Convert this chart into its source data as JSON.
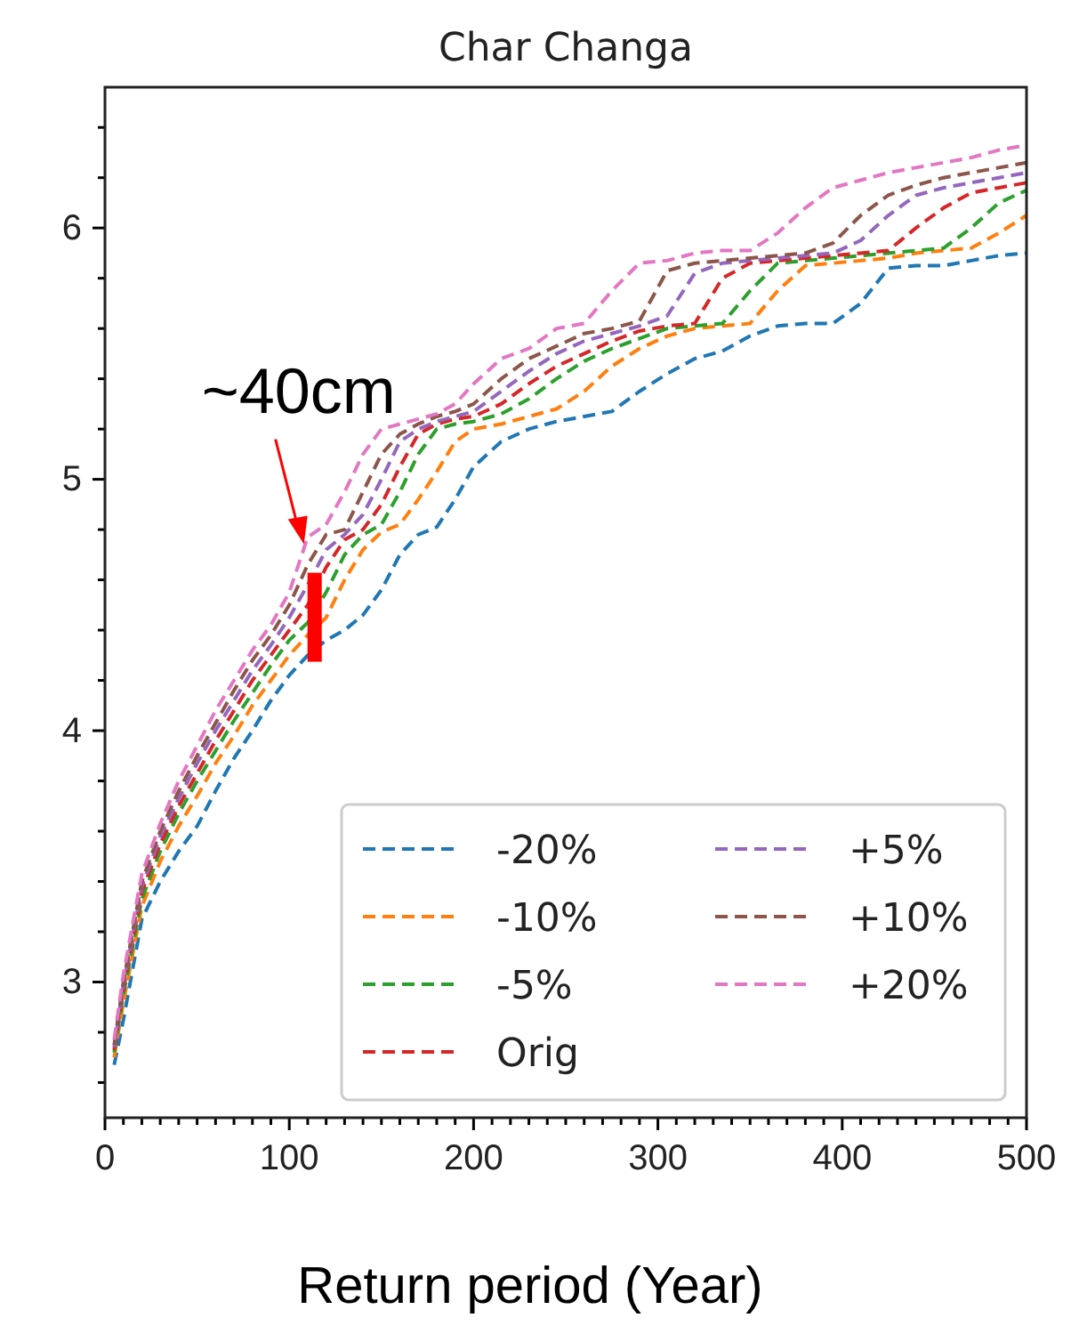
{
  "chart_data": {
    "type": "line",
    "title": "Char Changa",
    "xlabel": "Return period (Year)",
    "annotations": [
      {
        "text": "~40cm",
        "x": 107,
        "y": 4.6
      }
    ],
    "x": [
      5,
      10,
      20,
      30,
      40,
      50,
      60,
      70,
      80,
      90,
      100,
      110,
      120,
      130,
      140,
      150,
      160,
      170,
      180,
      190,
      200,
      215,
      230,
      245,
      260,
      275,
      290,
      305,
      320,
      335,
      350,
      365,
      380,
      395,
      410,
      425,
      440,
      455,
      470,
      485,
      500
    ],
    "series": [
      {
        "name": "-20%",
        "color": "#1f77b4",
        "values": [
          2.67,
          2.85,
          3.25,
          3.4,
          3.52,
          3.62,
          3.76,
          3.89,
          4.0,
          4.12,
          4.22,
          4.3,
          4.36,
          4.4,
          4.46,
          4.56,
          4.7,
          4.78,
          4.81,
          4.92,
          5.05,
          5.15,
          5.2,
          5.23,
          5.25,
          5.27,
          5.35,
          5.42,
          5.48,
          5.51,
          5.57,
          5.61,
          5.62,
          5.62,
          5.7,
          5.84,
          5.85,
          5.85,
          5.87,
          5.89,
          5.9
        ]
      },
      {
        "name": "-10%",
        "color": "#ff7f0e",
        "values": [
          2.7,
          2.92,
          3.3,
          3.48,
          3.62,
          3.74,
          3.87,
          3.98,
          4.1,
          4.2,
          4.3,
          4.38,
          4.45,
          4.6,
          4.72,
          4.79,
          4.82,
          4.92,
          5.03,
          5.15,
          5.2,
          5.22,
          5.25,
          5.28,
          5.35,
          5.45,
          5.52,
          5.57,
          5.6,
          5.61,
          5.62,
          5.75,
          5.85,
          5.86,
          5.87,
          5.88,
          5.9,
          5.91,
          5.92,
          5.98,
          6.05
        ]
      },
      {
        "name": "-5%",
        "color": "#2ca02c",
        "values": [
          2.72,
          2.95,
          3.33,
          3.52,
          3.67,
          3.8,
          3.92,
          4.04,
          4.15,
          4.26,
          4.36,
          4.43,
          4.55,
          4.7,
          4.78,
          4.82,
          4.95,
          5.1,
          5.2,
          5.22,
          5.23,
          5.26,
          5.32,
          5.4,
          5.47,
          5.52,
          5.56,
          5.6,
          5.61,
          5.62,
          5.75,
          5.86,
          5.87,
          5.88,
          5.89,
          5.9,
          5.91,
          5.92,
          6.0,
          6.1,
          6.15
        ]
      },
      {
        "name": "Orig",
        "color": "#d62728",
        "values": [
          2.73,
          2.97,
          3.36,
          3.55,
          3.7,
          3.83,
          3.96,
          4.08,
          4.2,
          4.3,
          4.4,
          4.5,
          4.65,
          4.76,
          4.8,
          4.9,
          5.05,
          5.18,
          5.22,
          5.24,
          5.25,
          5.3,
          5.38,
          5.45,
          5.5,
          5.55,
          5.59,
          5.61,
          5.62,
          5.8,
          5.86,
          5.87,
          5.88,
          5.89,
          5.9,
          5.91,
          6.0,
          6.08,
          6.14,
          6.16,
          6.18
        ]
      },
      {
        "name": "+5%",
        "color": "#9467bd",
        "values": [
          2.74,
          2.99,
          3.38,
          3.58,
          3.73,
          3.87,
          4.0,
          4.12,
          4.24,
          4.34,
          4.45,
          4.58,
          4.72,
          4.78,
          4.86,
          5.0,
          5.15,
          5.2,
          5.23,
          5.25,
          5.27,
          5.35,
          5.43,
          5.5,
          5.55,
          5.58,
          5.61,
          5.65,
          5.82,
          5.86,
          5.87,
          5.88,
          5.89,
          5.9,
          5.95,
          6.05,
          6.13,
          6.16,
          6.18,
          6.2,
          6.22
        ]
      },
      {
        "name": "+10%",
        "color": "#8c564b",
        "values": [
          2.75,
          3.0,
          3.4,
          3.6,
          3.76,
          3.9,
          4.03,
          4.16,
          4.28,
          4.38,
          4.5,
          4.66,
          4.78,
          4.8,
          4.95,
          5.1,
          5.18,
          5.22,
          5.25,
          5.27,
          5.3,
          5.4,
          5.48,
          5.53,
          5.58,
          5.6,
          5.63,
          5.83,
          5.86,
          5.87,
          5.88,
          5.89,
          5.9,
          5.94,
          6.05,
          6.13,
          6.17,
          6.2,
          6.22,
          6.24,
          6.26
        ]
      },
      {
        "name": "+20%",
        "color": "#e377c2",
        "values": [
          2.77,
          3.03,
          3.43,
          3.63,
          3.8,
          3.94,
          4.08,
          4.2,
          4.32,
          4.42,
          4.55,
          4.77,
          4.82,
          4.95,
          5.1,
          5.2,
          5.22,
          5.24,
          5.26,
          5.3,
          5.38,
          5.48,
          5.52,
          5.6,
          5.62,
          5.75,
          5.86,
          5.87,
          5.9,
          5.91,
          5.91,
          5.98,
          6.08,
          6.16,
          6.19,
          6.22,
          6.24,
          6.26,
          6.28,
          6.31,
          6.33
        ]
      }
    ],
    "xlim": [
      0,
      500
    ],
    "xticks": [
      0,
      {
        "value": 10,
        "label": null
      },
      {
        "value": 20,
        "label": null
      },
      {
        "value": 30,
        "label": null
      },
      {
        "value": 40,
        "label": null
      },
      {
        "value": 50,
        "label": null
      },
      {
        "value": 60,
        "label": null
      },
      {
        "value": 70,
        "label": null
      },
      {
        "value": 80,
        "label": null
      },
      {
        "value": 90,
        "label": null
      },
      100,
      {
        "value": 110,
        "label": null
      },
      {
        "value": 120,
        "label": null
      },
      {
        "value": 130,
        "label": null
      },
      {
        "value": 140,
        "label": null
      },
      {
        "value": 150,
        "label": null
      },
      {
        "value": 160,
        "label": null
      },
      {
        "value": 170,
        "label": null
      },
      {
        "value": 180,
        "label": null
      },
      {
        "value": 190,
        "label": null
      },
      200,
      {
        "value": 210,
        "label": null
      },
      {
        "value": 220,
        "label": null
      },
      {
        "value": 230,
        "label": null
      },
      {
        "value": 240,
        "label": null
      },
      {
        "value": 250,
        "label": null
      },
      {
        "value": 260,
        "label": null
      },
      {
        "value": 270,
        "label": null
      },
      {
        "value": 280,
        "label": null
      },
      {
        "value": 290,
        "label": null
      },
      300,
      {
        "value": 310,
        "label": null
      },
      {
        "value": 320,
        "label": null
      },
      {
        "value": 330,
        "label": null
      },
      {
        "value": 340,
        "label": null
      },
      {
        "value": 350,
        "label": null
      },
      {
        "value": 360,
        "label": null
      },
      {
        "value": 370,
        "label": null
      },
      {
        "value": 380,
        "label": null
      },
      {
        "value": 390,
        "label": null
      },
      400,
      {
        "value": 410,
        "label": null
      },
      {
        "value": 420,
        "label": null
      },
      {
        "value": 430,
        "label": null
      },
      {
        "value": 440,
        "label": null
      },
      {
        "value": 450,
        "label": null
      },
      {
        "value": 460,
        "label": null
      },
      {
        "value": 470,
        "label": null
      },
      {
        "value": 480,
        "label": null
      },
      {
        "value": 490,
        "label": null
      },
      500
    ],
    "ylim": [
      2.46,
      6.56
    ],
    "yticks": [
      {
        "value": 2.6,
        "label": null
      },
      {
        "value": 2.8,
        "label": null
      },
      3,
      {
        "value": 3.2,
        "label": null
      },
      {
        "value": 3.4,
        "label": null
      },
      {
        "value": 3.6,
        "label": null
      },
      {
        "value": 3.8,
        "label": null
      },
      4,
      {
        "value": 4.2,
        "label": null
      },
      {
        "value": 4.4,
        "label": null
      },
      {
        "value": 4.6,
        "label": null
      },
      {
        "value": 4.8,
        "label": null
      },
      5,
      {
        "value": 5.2,
        "label": null
      },
      {
        "value": 5.4,
        "label": null
      },
      {
        "value": 5.6,
        "label": null
      },
      {
        "value": 5.8,
        "label": null
      },
      6,
      {
        "value": 6.2,
        "label": null
      },
      {
        "value": 6.4,
        "label": null
      }
    ],
    "line_style": "dashed",
    "legend": "bottom right",
    "grid": false
  }
}
